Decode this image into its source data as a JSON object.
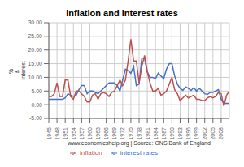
{
  "chart_data": {
    "type": "line",
    "title": "Inflation and Interest rates",
    "xlabel": "www.economicshelp.org | Source: ONS Bank of England",
    "ylabel": "% \n£ \nInterest",
    "x": [
      1945,
      1946,
      1947,
      1948,
      1949,
      1950,
      1951,
      1952,
      1953,
      1954,
      1955,
      1956,
      1957,
      1958,
      1959,
      1960,
      1961,
      1962,
      1963,
      1964,
      1965,
      1966,
      1967,
      1968,
      1969,
      1970,
      1971,
      1972,
      1973,
      1974,
      1975,
      1976,
      1977,
      1978,
      1979,
      1980,
      1981,
      1982,
      1983,
      1984,
      1985,
      1986,
      1987,
      1988,
      1989,
      1990,
      1991,
      1992,
      1993,
      1994,
      1995,
      1996,
      1997,
      1998,
      1999,
      2000,
      2001,
      2002,
      2003,
      2004,
      2005,
      2006,
      2007,
      2008,
      2009,
      2010,
      2011
    ],
    "series": [
      {
        "name": "interest rates",
        "color": "#4472c4",
        "values": [
          2.0,
          2.0,
          2.0,
          2.0,
          2.0,
          2.0,
          2.5,
          4.0,
          3.5,
          3.0,
          3.5,
          5.5,
          7.0,
          7.0,
          4.0,
          5.0,
          5.0,
          4.5,
          4.0,
          5.0,
          6.0,
          7.0,
          8.0,
          8.0,
          8.0,
          7.0,
          5.0,
          9.0,
          13.0,
          12.5,
          11.5,
          14.0,
          7.0,
          7.5,
          17.0,
          17.0,
          12.0,
          10.0,
          10.0,
          9.5,
          11.5,
          10.5,
          9.5,
          13.0,
          15.0,
          15.0,
          10.5,
          7.5,
          6.0,
          5.25,
          6.5,
          6.0,
          5.25,
          6.25,
          5.0,
          6.0,
          5.0,
          4.0,
          3.75,
          4.5,
          4.5,
          5.0,
          5.5,
          2.0,
          0.5,
          0.5,
          0.5
        ]
      },
      {
        "name": "inflation",
        "color": "#c0504d",
        "values": [
          3.0,
          3.0,
          4.0,
          8.0,
          3.0,
          3.0,
          9.0,
          9.0,
          3.0,
          2.0,
          5.0,
          5.0,
          4.0,
          3.0,
          1.0,
          1.0,
          3.5,
          4.0,
          2.0,
          4.0,
          4.5,
          4.0,
          3.0,
          4.5,
          5.0,
          7.0,
          9.0,
          7.0,
          9.0,
          16.0,
          24.0,
          16.0,
          16.0,
          8.0,
          14.0,
          18.0,
          12.0,
          8.0,
          5.0,
          5.0,
          6.0,
          3.5,
          4.0,
          5.0,
          7.5,
          10.0,
          5.5,
          4.0,
          1.5,
          2.5,
          3.5,
          2.5,
          3.0,
          3.5,
          2.0,
          2.0,
          1.5,
          1.5,
          2.5,
          3.0,
          2.5,
          3.0,
          4.5,
          4.0,
          -0.5,
          3.5,
          5.0
        ]
      }
    ],
    "xlim": [
      1945,
      2011
    ],
    "xticks": [
      1945,
      1948,
      1951,
      1954,
      1957,
      1960,
      1963,
      1966,
      1969,
      1972,
      1975,
      1978,
      1981,
      1984,
      1987,
      1990,
      1993,
      1996,
      1999,
      2002,
      2005,
      2008
    ],
    "ylim": [
      -5,
      30
    ],
    "yticks": [
      {
        "value": -5,
        "label": "-5.00"
      },
      {
        "value": 0,
        "label": "0.00"
      },
      {
        "value": 5,
        "label": "5.00"
      },
      {
        "value": 10,
        "label": "10.00"
      },
      {
        "value": 15,
        "label": "15.00"
      },
      {
        "value": 20,
        "label": "20.00"
      },
      {
        "value": 25,
        "label": "25.00"
      },
      {
        "value": 30,
        "label": "30.00"
      }
    ],
    "grid": true,
    "legend": "bottom"
  }
}
